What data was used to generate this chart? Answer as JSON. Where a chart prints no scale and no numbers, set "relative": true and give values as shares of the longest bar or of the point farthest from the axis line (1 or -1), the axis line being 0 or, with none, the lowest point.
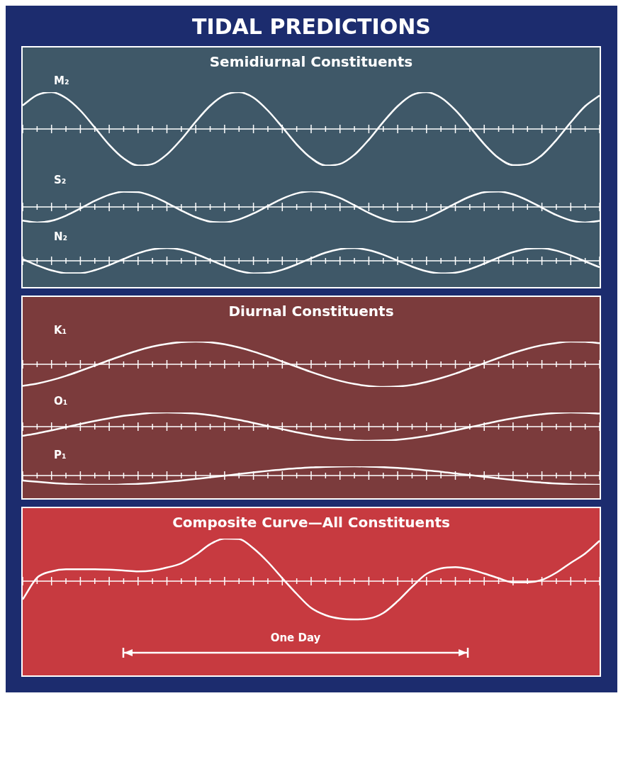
{
  "chart_data": [
    {
      "type": "line",
      "title": "TIDAL PREDICTIONS",
      "subtitle": "Semidiurnal Constituents",
      "relative": true,
      "categories": [
        null,
        null,
        null,
        null,
        null,
        null,
        null,
        null,
        null,
        null,
        null,
        null,
        null,
        null,
        null,
        null,
        null,
        null,
        null,
        null,
        null,
        null,
        null,
        null,
        null,
        null,
        null,
        null,
        null,
        null,
        null,
        null,
        null,
        null,
        null,
        null,
        null,
        null,
        null,
        null,
        null
      ],
      "series": [
        {
          "name": "M₂",
          "color": "#ffffff",
          "values": [
            0.64,
            0.92,
            1.0,
            0.84,
            0.5,
            0.04,
            -0.43,
            -0.8,
            -0.99,
            -0.95,
            -0.69,
            -0.28,
            0.2,
            0.63,
            0.92,
            1.0,
            0.85,
            0.5,
            0.05,
            -0.42,
            -0.79,
            -0.99,
            -0.95,
            -0.7,
            -0.29,
            0.19,
            0.62,
            0.92,
            1.0,
            0.85,
            0.51,
            0.06,
            -0.41,
            -0.79,
            -0.98,
            -0.95,
            -0.71,
            -0.3,
            0.18,
            0.62,
            0.91
          ]
        }
      ]
    },
    {
      "type": "line",
      "relative": true,
      "categories": [
        null,
        null,
        null,
        null,
        null,
        null,
        null,
        null,
        null,
        null,
        null,
        null,
        null,
        null,
        null,
        null,
        null,
        null,
        null,
        null,
        null,
        null,
        null,
        null,
        null,
        null,
        null,
        null,
        null,
        null,
        null,
        null,
        null,
        null,
        null,
        null,
        null,
        null,
        null,
        null,
        null
      ],
      "series": [
        {
          "name": "S₂",
          "color": "#ffffff",
          "values": [
            -0.87,
            -1.0,
            -0.89,
            -0.56,
            -0.1,
            0.39,
            0.78,
            0.98,
            0.95,
            0.69,
            0.26,
            -0.23,
            -0.66,
            -0.94,
            -0.99,
            -0.8,
            -0.42,
            0.06,
            0.53,
            0.87,
            1.0,
            0.89,
            0.57,
            0.11,
            -0.38,
            -0.77,
            -0.98,
            -0.95,
            -0.7,
            -0.27,
            0.22,
            0.66,
            0.94,
            0.99,
            0.81,
            0.43,
            -0.05,
            -0.52,
            -0.86,
            -1.0,
            -0.89
          ]
        }
      ]
    },
    {
      "type": "line",
      "relative": true,
      "categories": [
        null,
        null,
        null,
        null,
        null,
        null,
        null,
        null,
        null,
        null,
        null,
        null,
        null,
        null,
        null,
        null,
        null,
        null,
        null,
        null,
        null,
        null,
        null,
        null,
        null,
        null,
        null,
        null,
        null,
        null,
        null,
        null,
        null,
        null,
        null,
        null,
        null,
        null,
        null,
        null,
        null
      ],
      "series": [
        {
          "name": "N₂",
          "color": "#ffffff",
          "values": [
            0.13,
            -0.35,
            -0.75,
            -0.97,
            -0.97,
            -0.74,
            -0.34,
            0.14,
            0.59,
            0.9,
            1.0,
            0.87,
            0.53,
            0.07,
            -0.4,
            -0.79,
            -0.98,
            -0.95,
            -0.7,
            -0.28,
            0.2,
            0.64,
            0.92,
            1.0,
            0.83,
            0.48,
            0.01,
            -0.46,
            -0.82,
            -0.99,
            -0.93,
            -0.65,
            -0.22,
            0.26,
            0.68,
            0.95,
            0.99,
            0.8,
            0.42,
            -0.05,
            -0.51
          ]
        }
      ]
    },
    {
      "type": "line",
      "subtitle": "Diurnal Constituents",
      "relative": true,
      "categories": [
        null,
        null,
        null,
        null,
        null,
        null,
        null,
        null,
        null,
        null,
        null,
        null,
        null,
        null,
        null,
        null,
        null,
        null,
        null,
        null,
        null,
        null,
        null,
        null,
        null,
        null,
        null,
        null,
        null,
        null,
        null,
        null,
        null,
        null,
        null,
        null,
        null,
        null,
        null,
        null,
        null
      ],
      "series": [
        {
          "name": "K₁",
          "color": "#ffffff",
          "values": [
            -0.95,
            -0.85,
            -0.7,
            -0.51,
            -0.29,
            -0.06,
            0.18,
            0.4,
            0.61,
            0.78,
            0.9,
            0.98,
            1.0,
            0.97,
            0.88,
            0.74,
            0.56,
            0.35,
            0.12,
            -0.11,
            -0.34,
            -0.55,
            -0.73,
            -0.87,
            -0.96,
            -1.0,
            -0.98,
            -0.91,
            -0.78,
            -0.61,
            -0.41,
            -0.18,
            0.05,
            0.28,
            0.5,
            0.69,
            0.84,
            0.94,
            1.0,
            0.99,
            0.93
          ]
        }
      ]
    },
    {
      "type": "line",
      "relative": true,
      "categories": [
        null,
        null,
        null,
        null,
        null,
        null,
        null,
        null,
        null,
        null,
        null,
        null,
        null,
        null,
        null,
        null,
        null,
        null,
        null,
        null,
        null,
        null,
        null,
        null,
        null,
        null,
        null,
        null,
        null,
        null,
        null,
        null,
        null,
        null,
        null,
        null,
        null,
        null,
        null,
        null,
        null
      ],
      "series": [
        {
          "name": "O₁",
          "color": "#ffffff",
          "values": [
            -0.65,
            -0.47,
            -0.26,
            -0.04,
            0.19,
            0.4,
            0.59,
            0.76,
            0.88,
            0.97,
            1.0,
            0.98,
            0.92,
            0.81,
            0.65,
            0.47,
            0.26,
            0.04,
            -0.18,
            -0.4,
            -0.59,
            -0.76,
            -0.88,
            -0.97,
            -1.0,
            -0.98,
            -0.92,
            -0.81,
            -0.66,
            -0.47,
            -0.26,
            -0.04,
            0.18,
            0.4,
            0.59,
            0.75,
            0.88,
            0.96,
            1.0,
            0.98,
            0.92
          ]
        }
      ]
    },
    {
      "type": "line",
      "relative": true,
      "categories": [
        null,
        null,
        null,
        null,
        null,
        null,
        null,
        null,
        null,
        null,
        null,
        null,
        null,
        null,
        null,
        null,
        null,
        null,
        null,
        null,
        null,
        null,
        null,
        null,
        null,
        null,
        null,
        null,
        null,
        null,
        null,
        null,
        null,
        null,
        null,
        null,
        null,
        null,
        null,
        null,
        null
      ],
      "series": [
        {
          "name": "P₁",
          "color": "#ffffff",
          "values": [
            -0.54,
            -0.68,
            -0.8,
            -0.9,
            -0.96,
            -1.0,
            -1.0,
            -0.96,
            -0.9,
            -0.8,
            -0.68,
            -0.54,
            -0.37,
            -0.2,
            -0.02,
            0.17,
            0.34,
            0.51,
            0.66,
            0.78,
            0.88,
            0.95,
            0.99,
            1.0,
            0.97,
            0.91,
            0.82,
            0.71,
            0.56,
            0.41,
            0.23,
            0.05,
            -0.13,
            -0.31,
            -0.48,
            -0.63,
            -0.76,
            -0.86,
            -0.94,
            -0.99,
            -1.0
          ]
        }
      ]
    },
    {
      "type": "line",
      "subtitle": "Composite Curve—All Constituents",
      "relative": true,
      "annotations": [
        "One Day"
      ],
      "categories": [
        null,
        null,
        null,
        null,
        null,
        null,
        null,
        null,
        null,
        null,
        null,
        null,
        null,
        null,
        null,
        null,
        null,
        null,
        null,
        null,
        null,
        null,
        null,
        null,
        null,
        null,
        null,
        null,
        null,
        null,
        null,
        null,
        null,
        null,
        null,
        null,
        null,
        null,
        null,
        null,
        null
      ],
      "series": [
        {
          "color": "#ffffff",
          "values": [
            -0.43,
            0.08,
            0.23,
            0.28,
            0.28,
            0.28,
            0.27,
            0.25,
            0.23,
            0.25,
            0.32,
            0.42,
            0.62,
            0.87,
            1.0,
            0.99,
            0.77,
            0.45,
            0.07,
            -0.3,
            -0.63,
            -0.8,
            -0.88,
            -0.9,
            -0.88,
            -0.75,
            -0.47,
            -0.13,
            0.17,
            0.3,
            0.33,
            0.28,
            0.18,
            0.07,
            -0.03,
            -0.03,
            0.03,
            0.2,
            0.43,
            0.65,
            0.95
          ]
        }
      ]
    }
  ]
}
